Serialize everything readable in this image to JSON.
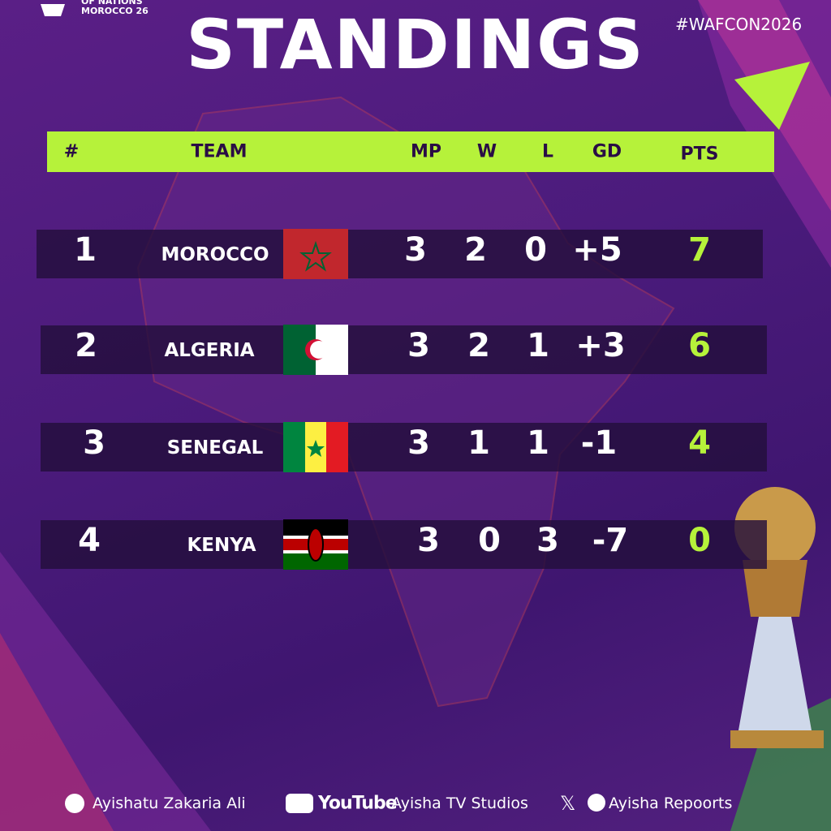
{
  "logo": {
    "lines": [
      "OF NATIONS",
      "MOROCCO 26"
    ]
  },
  "hashtag": "#WAFCON2026",
  "title": "STANDINGS",
  "table": {
    "columns": [
      "#",
      "TEAM",
      "MP",
      "W",
      "L",
      "GD",
      "PTS"
    ],
    "rows": [
      [
        1,
        "MOROCCO",
        3,
        2,
        0,
        "+5",
        7
      ],
      [
        2,
        "ALGERIA",
        3,
        2,
        1,
        "+3",
        6
      ],
      [
        3,
        "SENEGAL",
        3,
        1,
        1,
        -1,
        4
      ],
      [
        4,
        "KENYA",
        3,
        0,
        3,
        -7,
        0
      ]
    ]
  },
  "footer": {
    "facebook": "Ayishatu Zakaria Ali",
    "youtube_logo": "YouTube",
    "youtube": "Ayisha TV Studios",
    "tiktok": "Ayisha Repoorts"
  }
}
